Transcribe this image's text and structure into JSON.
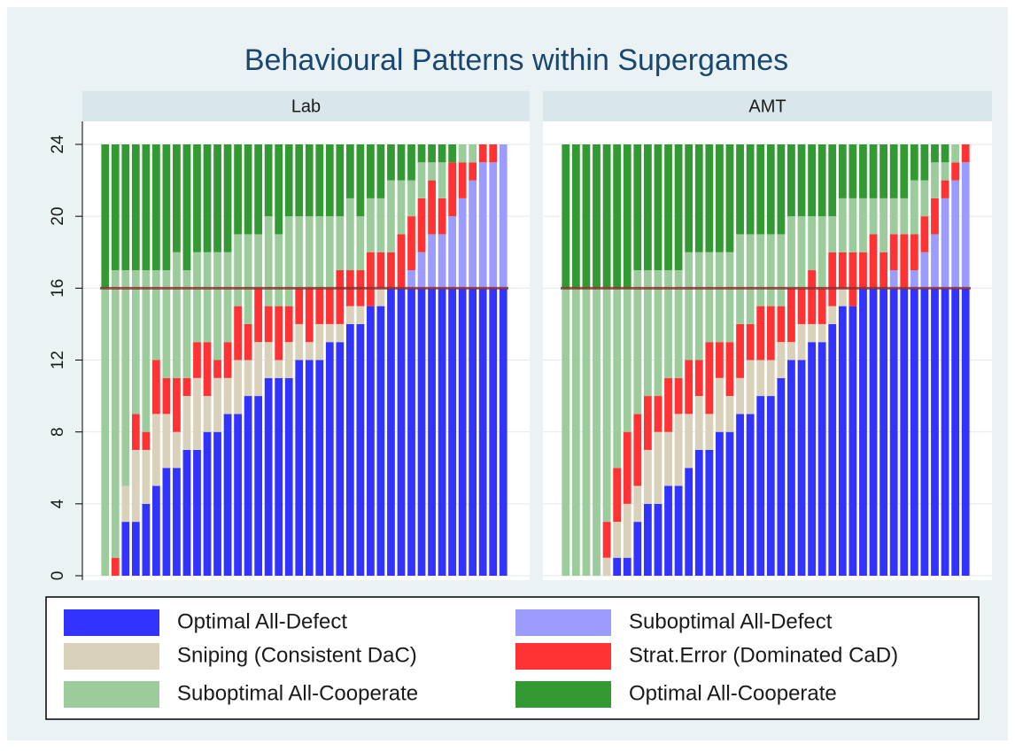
{
  "chart_data": {
    "type": "bar",
    "stacked": true,
    "title": "Behavioural Patterns within Supergames",
    "ylim": [
      0,
      24
    ],
    "yticks": [
      0,
      4,
      8,
      12,
      16,
      20,
      24
    ],
    "grid": true,
    "reference_line": 16,
    "reference_color": "#8b2e2e",
    "series": [
      {
        "name": "Optimal All-Defect",
        "color": "#3333ff"
      },
      {
        "name": "Suboptimal All-Defect",
        "color": "#9c9cff"
      },
      {
        "name": "Sniping (Consistent DaC)",
        "color": "#d9d1b9"
      },
      {
        "name": "Strat.Error (Dominated CaD)",
        "color": "#ff3333"
      },
      {
        "name": "Suboptimal All-Cooperate",
        "color": "#9ccc9c"
      },
      {
        "name": "Optimal All-Cooperate",
        "color": "#339933"
      }
    ],
    "panels": [
      {
        "label": "Lab",
        "values": [
          [
            0,
            0,
            3,
            3,
            4,
            5,
            6,
            6,
            7,
            7,
            8,
            8,
            9,
            9,
            10,
            10,
            11,
            11,
            11,
            12,
            12,
            12,
            13,
            13,
            14,
            14,
            15,
            15,
            16,
            16,
            16,
            16,
            16,
            16,
            16,
            16,
            16,
            16,
            16,
            16
          ],
          [
            0,
            0,
            0,
            0,
            0,
            0,
            0,
            0,
            0,
            0,
            0,
            0,
            0,
            0,
            0,
            0,
            0,
            0,
            0,
            0,
            0,
            0,
            0,
            0,
            0,
            0,
            0,
            0,
            0,
            0,
            1,
            2,
            3,
            3,
            4,
            5,
            6,
            7,
            7,
            8
          ],
          [
            0,
            0,
            2,
            4,
            3,
            4,
            3,
            2,
            3,
            4,
            2,
            3,
            2,
            3,
            2,
            3,
            2,
            1,
            2,
            2,
            1,
            2,
            1,
            1,
            1,
            1,
            0,
            1,
            0,
            0,
            0,
            0,
            0,
            0,
            0,
            0,
            0,
            0,
            0,
            0
          ],
          [
            0,
            1,
            0,
            2,
            1,
            3,
            2,
            3,
            1,
            2,
            3,
            1,
            2,
            3,
            2,
            3,
            2,
            3,
            2,
            2,
            3,
            2,
            2,
            3,
            2,
            2,
            3,
            2,
            2,
            3,
            3,
            3,
            3,
            2,
            3,
            2,
            1,
            1,
            1,
            0
          ],
          [
            16,
            16,
            12,
            8,
            9,
            5,
            6,
            7,
            6,
            5,
            5,
            6,
            5,
            4,
            5,
            3,
            5,
            4,
            5,
            4,
            4,
            4,
            4,
            3,
            4,
            3,
            3,
            3,
            4,
            3,
            2,
            2,
            1,
            2,
            0,
            1,
            1,
            0,
            0,
            0
          ],
          [
            8,
            7,
            7,
            7,
            7,
            7,
            7,
            6,
            7,
            6,
            6,
            6,
            6,
            5,
            5,
            5,
            4,
            5,
            4,
            4,
            4,
            4,
            4,
            4,
            3,
            4,
            3,
            3,
            2,
            2,
            2,
            1,
            1,
            1,
            1,
            0,
            0,
            0,
            0,
            0
          ]
        ]
      },
      {
        "label": "AMT",
        "values": [
          [
            0,
            0,
            0,
            0,
            0,
            1,
            1,
            3,
            4,
            4,
            5,
            5,
            6,
            7,
            7,
            8,
            8,
            9,
            9,
            10,
            10,
            11,
            12,
            12,
            13,
            13,
            14,
            15,
            15,
            16,
            16,
            16,
            16,
            16,
            16,
            16,
            16,
            16,
            16,
            16
          ],
          [
            0,
            0,
            0,
            0,
            0,
            0,
            0,
            0,
            0,
            0,
            0,
            0,
            0,
            0,
            0,
            0,
            0,
            0,
            0,
            0,
            0,
            0,
            0,
            0,
            0,
            0,
            0,
            0,
            0,
            0,
            0,
            0,
            1,
            0,
            1,
            2,
            3,
            5,
            6,
            7
          ],
          [
            0,
            0,
            0,
            0,
            1,
            2,
            3,
            2,
            3,
            4,
            3,
            4,
            3,
            3,
            2,
            3,
            2,
            2,
            3,
            2,
            2,
            2,
            1,
            2,
            1,
            1,
            1,
            1,
            0,
            0,
            0,
            0,
            0,
            0,
            0,
            0,
            0,
            0,
            0,
            0
          ],
          [
            0,
            0,
            0,
            0,
            2,
            3,
            4,
            4,
            3,
            2,
            3,
            2,
            3,
            2,
            4,
            2,
            3,
            3,
            2,
            3,
            3,
            2,
            3,
            2,
            3,
            2,
            3,
            2,
            3,
            2,
            3,
            2,
            2,
            3,
            2,
            2,
            2,
            1,
            1,
            1
          ],
          [
            16,
            16,
            16,
            16,
            13,
            10,
            8,
            8,
            7,
            7,
            6,
            6,
            6,
            6,
            5,
            5,
            5,
            5,
            5,
            4,
            4,
            4,
            4,
            4,
            3,
            4,
            2,
            3,
            3,
            3,
            2,
            3,
            2,
            2,
            3,
            2,
            2,
            1,
            1,
            0
          ],
          [
            8,
            8,
            8,
            8,
            8,
            8,
            8,
            7,
            7,
            7,
            7,
            7,
            6,
            6,
            6,
            6,
            6,
            5,
            5,
            5,
            5,
            5,
            4,
            4,
            4,
            4,
            4,
            3,
            3,
            3,
            3,
            3,
            3,
            3,
            2,
            2,
            1,
            1,
            0,
            0
          ]
        ]
      }
    ]
  }
}
